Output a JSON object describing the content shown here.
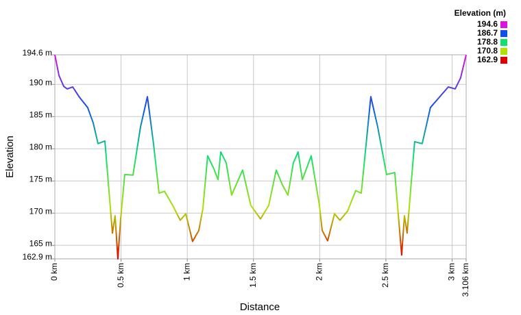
{
  "chart_data": {
    "type": "line",
    "xlabel": "Distance",
    "ylabel": "Elevation",
    "x": [
      0,
      0.031,
      0.067,
      0.093,
      0.135,
      0.186,
      0.248,
      0.29,
      0.326,
      0.378,
      0.435,
      0.455,
      0.476,
      0.497,
      0.528,
      0.59,
      0.647,
      0.699,
      0.745,
      0.787,
      0.828,
      0.89,
      0.947,
      0.989,
      1.04,
      1.087,
      1.118,
      1.154,
      1.201,
      1.232,
      1.253,
      1.294,
      1.335,
      1.418,
      1.48,
      1.553,
      1.615,
      1.672,
      1.718,
      1.76,
      1.801,
      1.837,
      1.869,
      1.936,
      1.998,
      2.019,
      2.06,
      2.112,
      2.153,
      2.21,
      2.272,
      2.314,
      2.386,
      2.438,
      2.505,
      2.567,
      2.619,
      2.64,
      2.66,
      2.717,
      2.774,
      2.836,
      2.899,
      2.971,
      3.023,
      3.064,
      3.106
    ],
    "values": [
      194.6,
      191.4,
      189.7,
      189.3,
      189.6,
      188.0,
      186.4,
      184.0,
      180.8,
      181.2,
      166.9,
      169.6,
      162.9,
      169.1,
      176.0,
      175.9,
      183.4,
      188.1,
      180.8,
      173.1,
      173.4,
      171.2,
      168.9,
      169.9,
      165.6,
      167.3,
      170.7,
      178.9,
      176.9,
      175.2,
      179.5,
      177.8,
      172.8,
      176.7,
      171.2,
      169.1,
      171.2,
      176.7,
      174.4,
      172.8,
      177.8,
      179.5,
      175.2,
      178.9,
      171.2,
      167.3,
      165.7,
      169.9,
      168.9,
      170.3,
      173.5,
      173.1,
      188.1,
      183.4,
      176.0,
      176.3,
      163.5,
      169.6,
      166.9,
      181.1,
      180.8,
      186.4,
      187.9,
      189.6,
      189.3,
      191.0,
      194.6
    ],
    "xlim": [
      0,
      3.106
    ],
    "xticks": [
      {
        "value": 0,
        "label": "0 km"
      },
      {
        "value": 0.5,
        "label": "0.5 km"
      },
      {
        "value": 1,
        "label": "1 km"
      },
      {
        "value": 1.5,
        "label": "1.5 km"
      },
      {
        "value": 2,
        "label": "2 km"
      },
      {
        "value": 2.5,
        "label": "2.5 km"
      },
      {
        "value": 3,
        "label": "3 km"
      },
      {
        "value": 3.106,
        "label": "3.106 km"
      }
    ],
    "ylim": [
      162.9,
      194.6
    ],
    "yticks": [
      {
        "value": 162.9,
        "label": "162.9 m"
      },
      {
        "value": 165,
        "label": "165 m"
      },
      {
        "value": 170,
        "label": "170 m"
      },
      {
        "value": 175,
        "label": "175 m"
      },
      {
        "value": 180,
        "label": "180 m"
      },
      {
        "value": 185,
        "label": "185 m"
      },
      {
        "value": 190,
        "label": "190 m"
      },
      {
        "value": 194.6,
        "label": "194.6 m"
      }
    ],
    "grid": true,
    "color_scale": {
      "title": "Elevation (m)",
      "stops": [
        {
          "value": 194.6,
          "color": "#e010e0"
        },
        {
          "value": 186.7,
          "color": "#1050e8"
        },
        {
          "value": 178.8,
          "color": "#10e070"
        },
        {
          "value": 170.8,
          "color": "#b0e000"
        },
        {
          "value": 162.9,
          "color": "#e00000"
        }
      ]
    }
  }
}
